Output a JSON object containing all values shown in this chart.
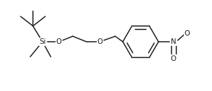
{
  "bg_color": "#ffffff",
  "line_color": "#1a1a1a",
  "line_width": 1.1,
  "font_size": 7.0,
  "font_family": "Arial",
  "figsize": [
    3.09,
    1.33
  ],
  "dpi": 100,
  "xlim": [
    0,
    309
  ],
  "ylim": [
    0,
    133
  ]
}
